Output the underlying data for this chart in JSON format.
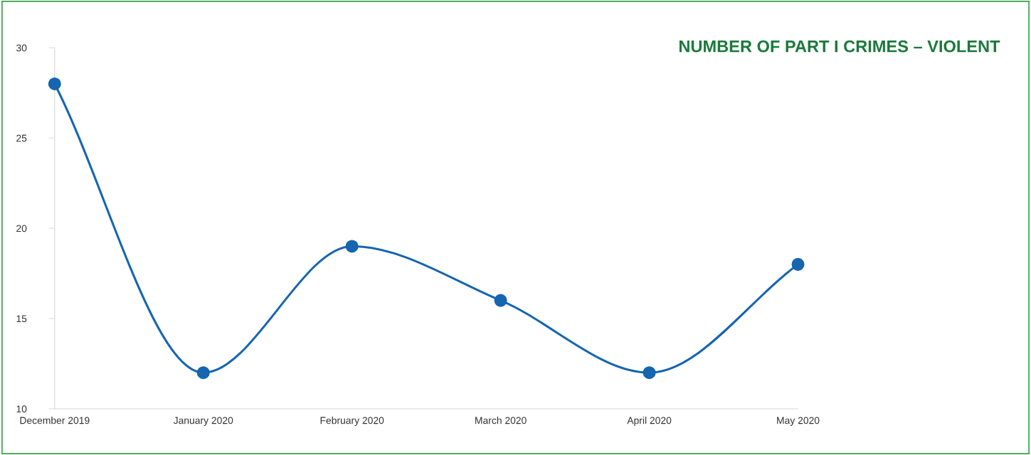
{
  "chart_data": {
    "type": "line",
    "title": "NUMBER OF PART I CRIMES – VIOLENT",
    "categories": [
      "December 2019",
      "January 2020",
      "February 2020",
      "March 2020",
      "April 2020",
      "May 2020"
    ],
    "series": [
      {
        "color": "#1565b0",
        "values": [
          28,
          12,
          19,
          16,
          12,
          18
        ]
      }
    ],
    "ylim": [
      10,
      30
    ],
    "yticks": [
      10,
      15,
      20,
      25,
      30
    ],
    "grid": false,
    "legend": false,
    "marker": "circle",
    "line_style": "solid"
  }
}
